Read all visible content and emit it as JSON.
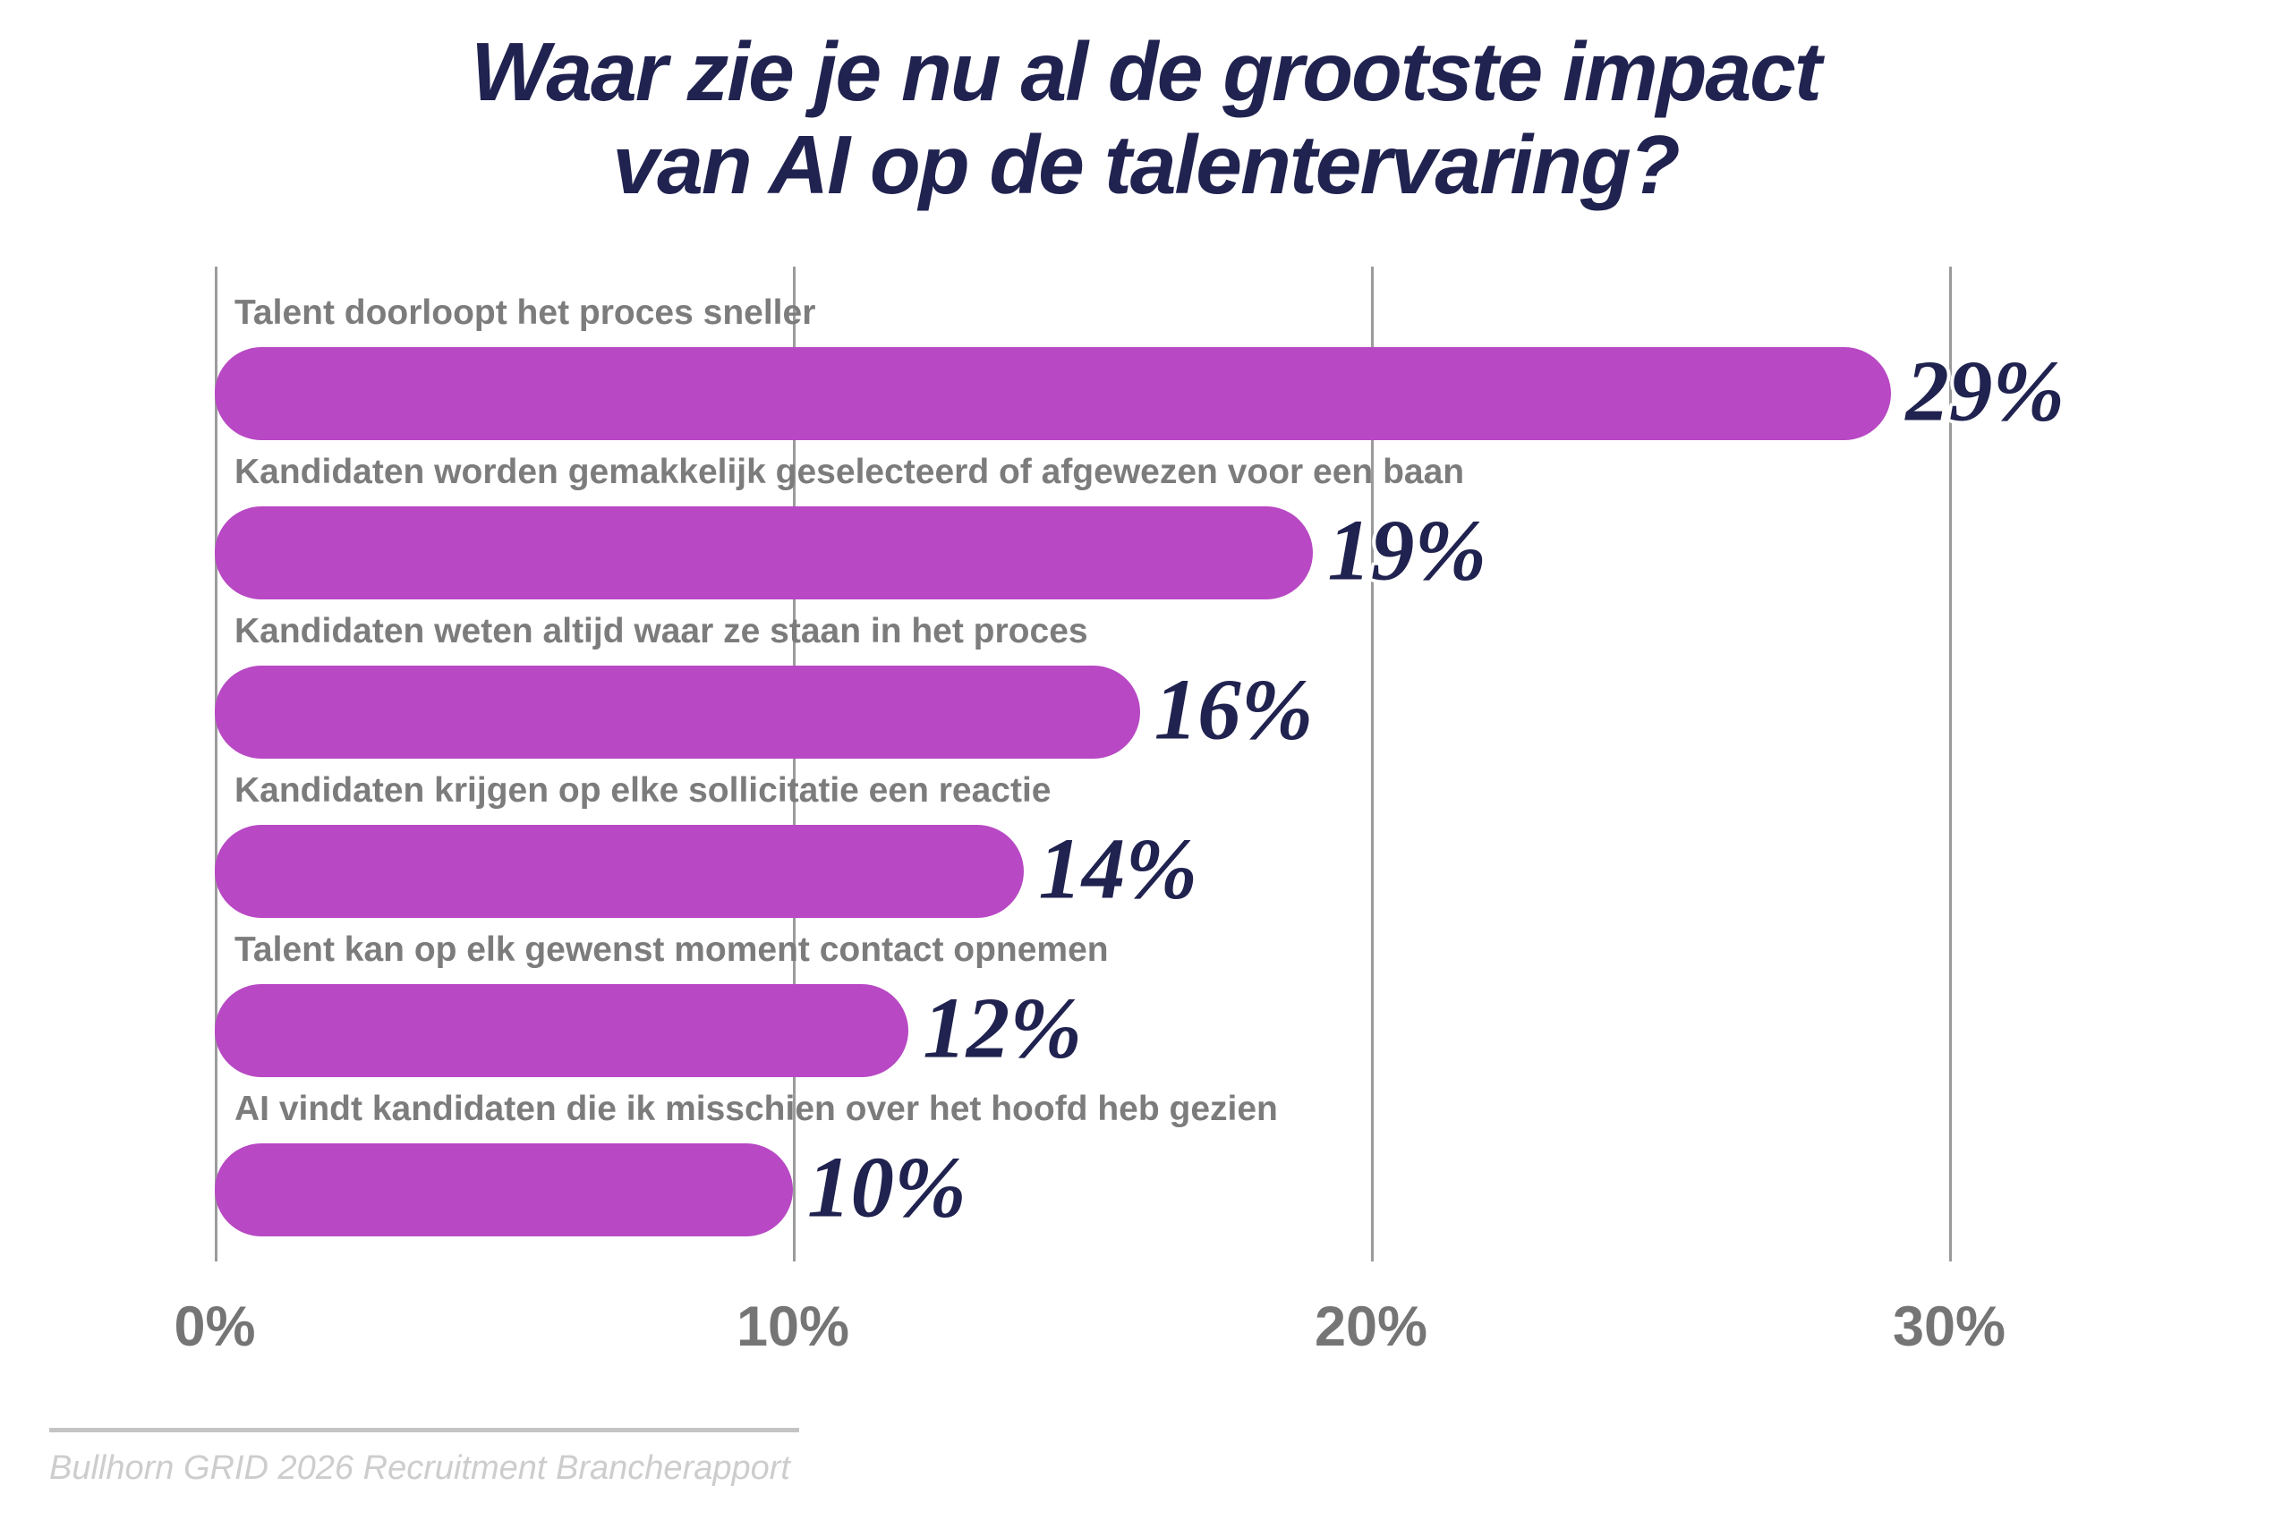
{
  "title": {
    "line1": "Waar zie je nu al de grootste impact",
    "line2": "van AI op de talentervaring?"
  },
  "chart_data": {
    "type": "bar",
    "orientation": "horizontal",
    "title": "Waar zie je nu al de grootste impact van AI op de talentervaring?",
    "categories": [
      "Talent doorloopt het proces sneller",
      "Kandidaten worden gemakkelijk geselecteerd of afgewezen voor een baan",
      "Kandidaten weten altijd waar ze staan in het proces",
      "Kandidaten krijgen op elke sollicitatie een reactie",
      "Talent kan op elk gewenst moment contact opnemen",
      "AI vindt kandidaten die ik misschien over het hoofd heb gezien"
    ],
    "values": [
      29,
      19,
      16,
      14,
      12,
      10
    ],
    "value_labels": [
      "29%",
      "19%",
      "16%",
      "14%",
      "12%",
      "10%"
    ],
    "x_ticks": {
      "labels": [
        "0%",
        "10%",
        "20%",
        "30%"
      ],
      "values": [
        0,
        10,
        20,
        30
      ]
    },
    "xlim": [
      0,
      33.4
    ],
    "xlabel": "",
    "ylabel": "",
    "grid": "vertical-gridlines-on",
    "legend": "none",
    "colors": {
      "bar": "#B848C4",
      "value_text": "#20224F",
      "category_text": "#7C7C7C",
      "tick_text": "#757575",
      "gridline": "#9B9B9B",
      "title_text": "#20224F"
    }
  },
  "source": "Bullhorn GRID 2026 Recruitment Brancherapport"
}
